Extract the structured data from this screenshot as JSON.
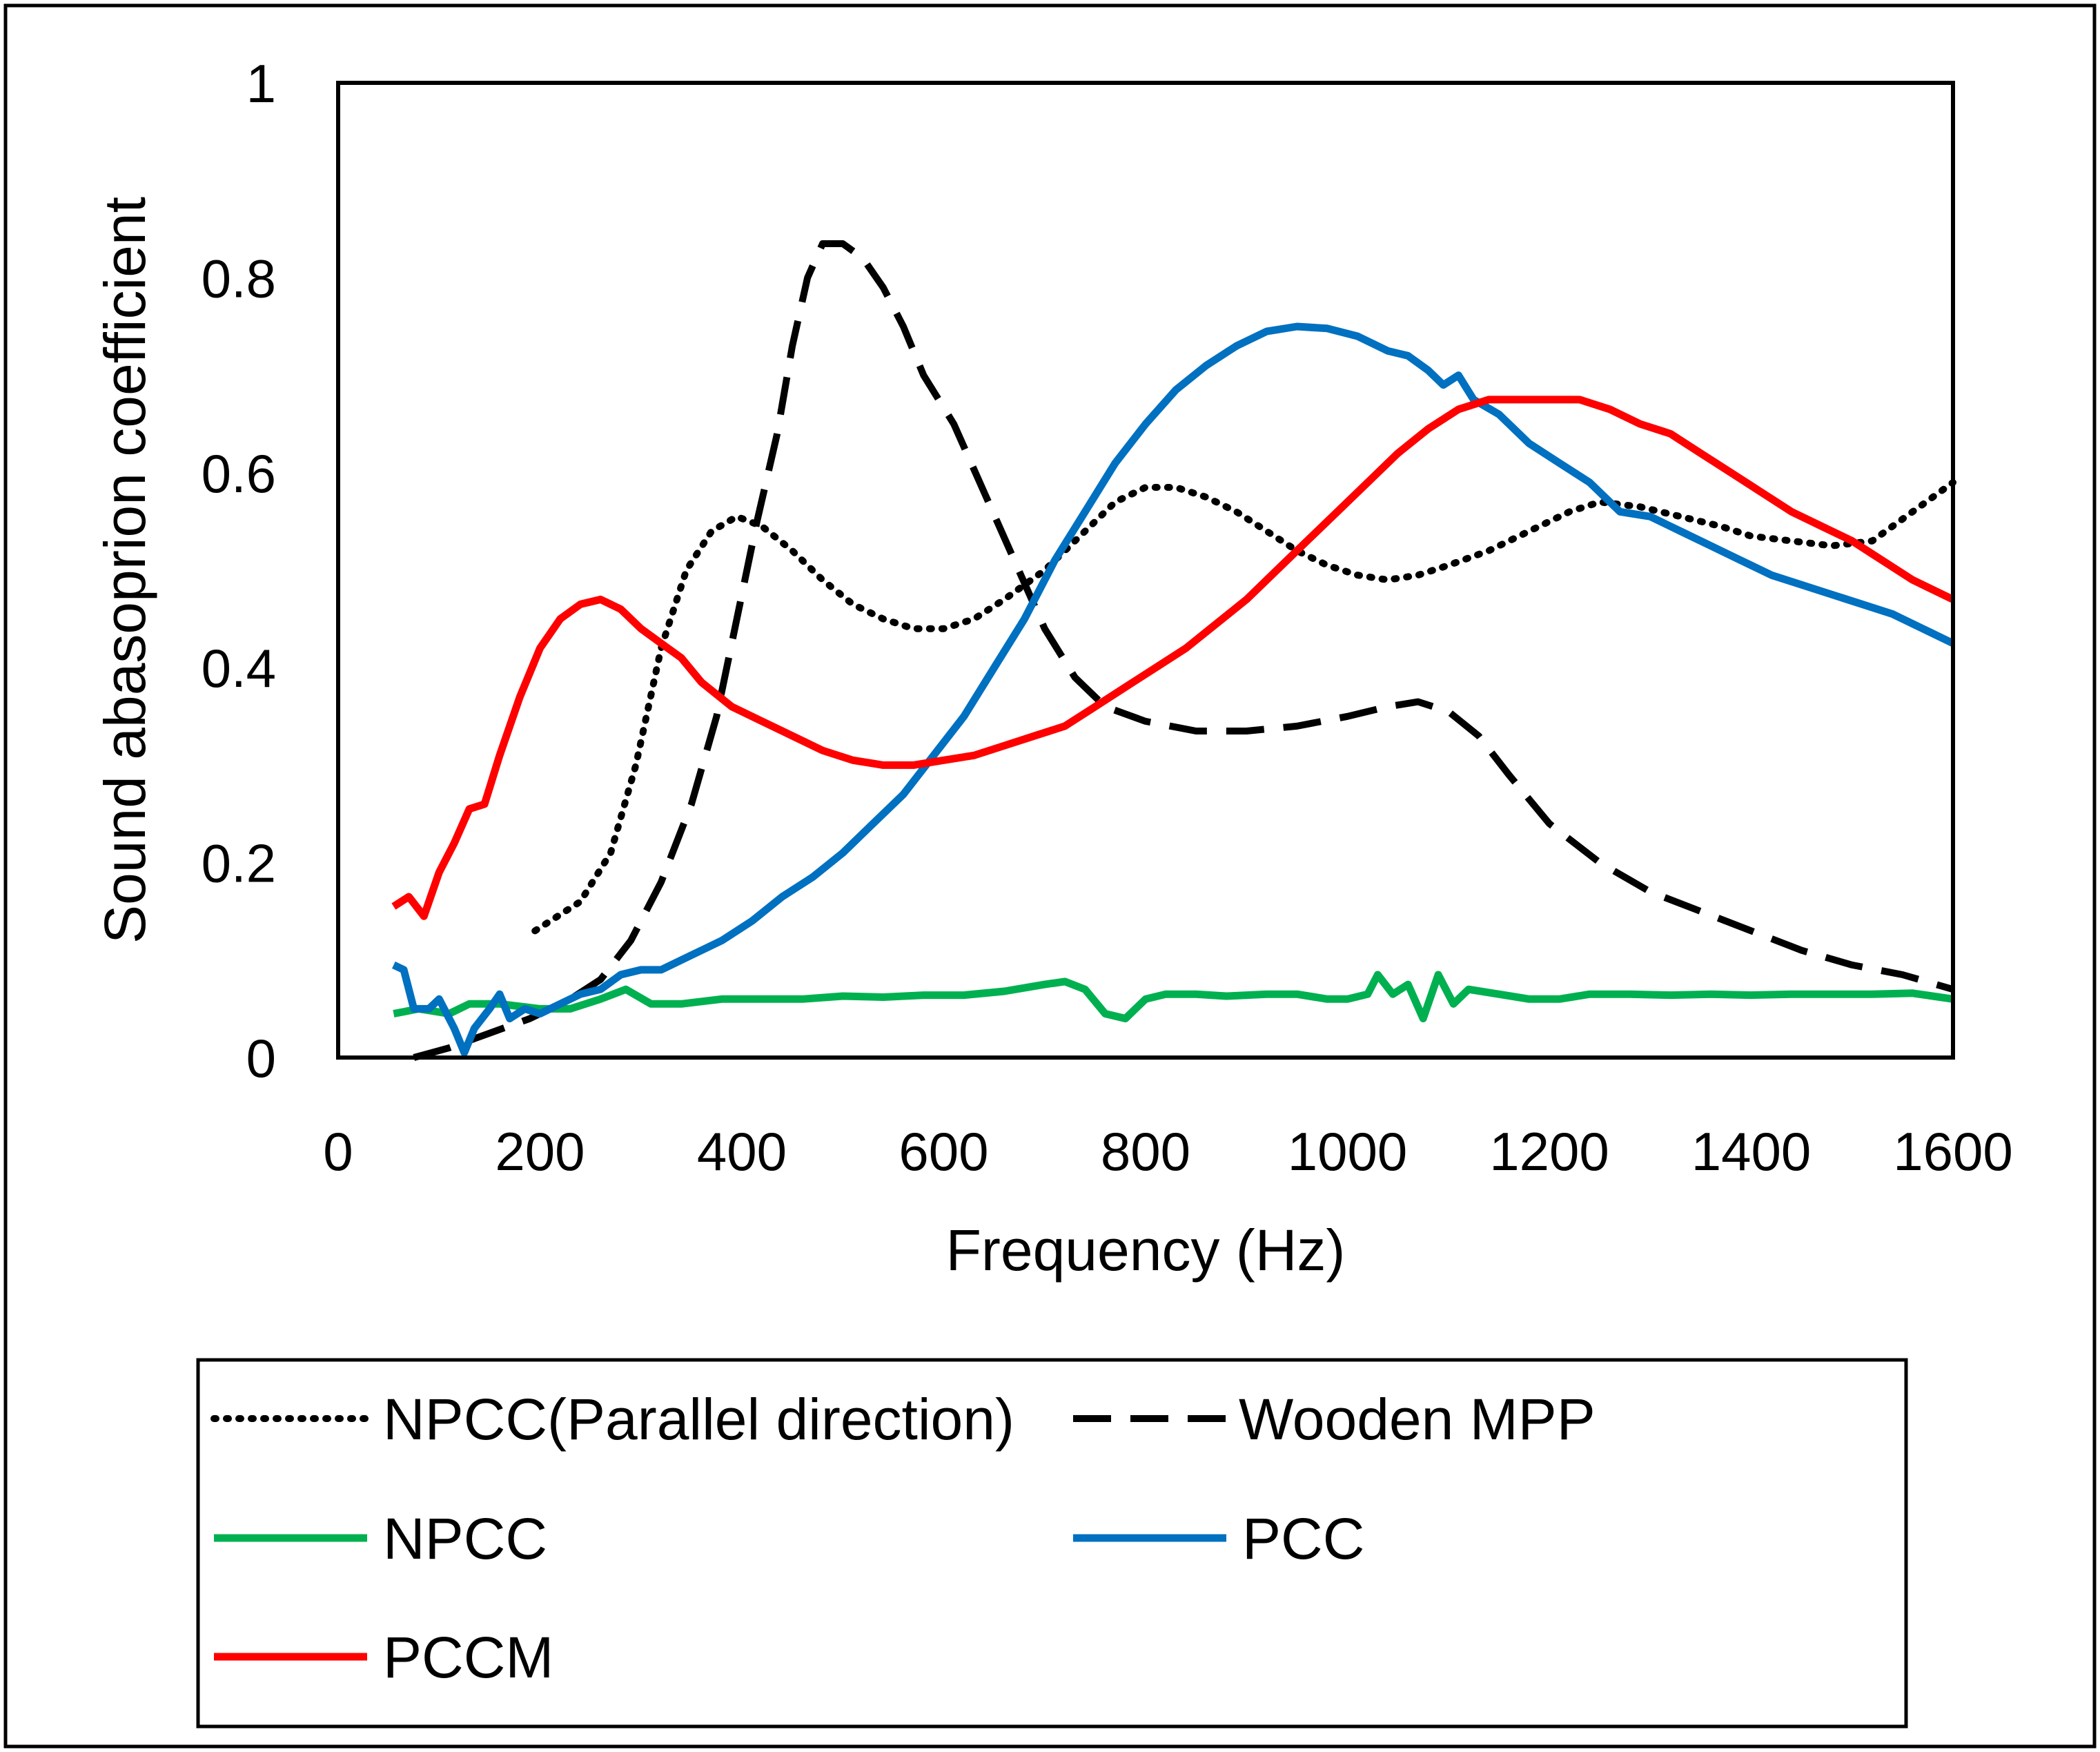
{
  "chart_data": {
    "type": "line",
    "title": "",
    "xlabel": "Frequency (Hz)",
    "ylabel": "Sound abasoprion coefficient",
    "xlim": [
      0,
      1600
    ],
    "ylim": [
      0,
      1
    ],
    "xticks": [
      0,
      200,
      400,
      600,
      800,
      1000,
      1200,
      1400,
      1600
    ],
    "yticks": [
      0,
      0.2,
      0.4,
      0.6,
      0.8,
      1
    ],
    "ytick_labels": [
      "0",
      "0.2",
      "0.4",
      "0.6",
      "0.8",
      "1"
    ],
    "grid": false,
    "legend_position": "bottom",
    "series": [
      {
        "name": "NPCC(Parallel direction)",
        "color": "#000000",
        "style": "dotted",
        "points": [
          [
            195,
            0.13
          ],
          [
            240,
            0.16
          ],
          [
            270,
            0.21
          ],
          [
            295,
            0.3
          ],
          [
            320,
            0.42
          ],
          [
            345,
            0.5
          ],
          [
            370,
            0.54
          ],
          [
            395,
            0.555
          ],
          [
            420,
            0.545
          ],
          [
            450,
            0.52
          ],
          [
            480,
            0.49
          ],
          [
            510,
            0.465
          ],
          [
            540,
            0.45
          ],
          [
            570,
            0.44
          ],
          [
            600,
            0.44
          ],
          [
            630,
            0.45
          ],
          [
            660,
            0.47
          ],
          [
            700,
            0.5
          ],
          [
            740,
            0.54
          ],
          [
            770,
            0.57
          ],
          [
            800,
            0.585
          ],
          [
            830,
            0.585
          ],
          [
            860,
            0.575
          ],
          [
            890,
            0.56
          ],
          [
            920,
            0.54
          ],
          [
            950,
            0.52
          ],
          [
            980,
            0.505
          ],
          [
            1010,
            0.495
          ],
          [
            1040,
            0.49
          ],
          [
            1070,
            0.495
          ],
          [
            1100,
            0.505
          ],
          [
            1140,
            0.52
          ],
          [
            1180,
            0.54
          ],
          [
            1220,
            0.56
          ],
          [
            1250,
            0.57
          ],
          [
            1290,
            0.565
          ],
          [
            1330,
            0.555
          ],
          [
            1370,
            0.545
          ],
          [
            1400,
            0.535
          ],
          [
            1440,
            0.53
          ],
          [
            1480,
            0.525
          ],
          [
            1520,
            0.53
          ],
          [
            1560,
            0.56
          ],
          [
            1600,
            0.59
          ]
        ]
      },
      {
        "name": "Wooden MPP",
        "color": "#000000",
        "style": "dashed",
        "points": [
          [
            75,
            0.0
          ],
          [
            110,
            0.01
          ],
          [
            150,
            0.025
          ],
          [
            190,
            0.04
          ],
          [
            230,
            0.06
          ],
          [
            260,
            0.08
          ],
          [
            290,
            0.12
          ],
          [
            320,
            0.18
          ],
          [
            350,
            0.26
          ],
          [
            375,
            0.35
          ],
          [
            395,
            0.45
          ],
          [
            415,
            0.55
          ],
          [
            435,
            0.64
          ],
          [
            450,
            0.73
          ],
          [
            465,
            0.8
          ],
          [
            480,
            0.835
          ],
          [
            500,
            0.835
          ],
          [
            520,
            0.82
          ],
          [
            540,
            0.79
          ],
          [
            560,
            0.75
          ],
          [
            580,
            0.7
          ],
          [
            610,
            0.65
          ],
          [
            640,
            0.58
          ],
          [
            670,
            0.51
          ],
          [
            700,
            0.44
          ],
          [
            730,
            0.39
          ],
          [
            760,
            0.36
          ],
          [
            800,
            0.345
          ],
          [
            850,
            0.335
          ],
          [
            900,
            0.335
          ],
          [
            950,
            0.34
          ],
          [
            1000,
            0.35
          ],
          [
            1040,
            0.36
          ],
          [
            1070,
            0.365
          ],
          [
            1100,
            0.355
          ],
          [
            1130,
            0.33
          ],
          [
            1160,
            0.29
          ],
          [
            1200,
            0.24
          ],
          [
            1250,
            0.2
          ],
          [
            1300,
            0.17
          ],
          [
            1350,
            0.15
          ],
          [
            1400,
            0.13
          ],
          [
            1450,
            0.11
          ],
          [
            1500,
            0.095
          ],
          [
            1550,
            0.085
          ],
          [
            1600,
            0.07
          ]
        ]
      },
      {
        "name": "NPCC",
        "color": "#00b050",
        "style": "solid",
        "points": [
          [
            55,
            0.045
          ],
          [
            80,
            0.05
          ],
          [
            110,
            0.045
          ],
          [
            130,
            0.055
          ],
          [
            160,
            0.055
          ],
          [
            200,
            0.05
          ],
          [
            230,
            0.05
          ],
          [
            260,
            0.06
          ],
          [
            285,
            0.07
          ],
          [
            310,
            0.055
          ],
          [
            340,
            0.055
          ],
          [
            380,
            0.06
          ],
          [
            420,
            0.06
          ],
          [
            460,
            0.06
          ],
          [
            500,
            0.063
          ],
          [
            540,
            0.062
          ],
          [
            580,
            0.064
          ],
          [
            620,
            0.064
          ],
          [
            660,
            0.068
          ],
          [
            700,
            0.075
          ],
          [
            720,
            0.078
          ],
          [
            740,
            0.07
          ],
          [
            760,
            0.045
          ],
          [
            780,
            0.04
          ],
          [
            800,
            0.06
          ],
          [
            820,
            0.065
          ],
          [
            850,
            0.065
          ],
          [
            880,
            0.063
          ],
          [
            920,
            0.065
          ],
          [
            950,
            0.065
          ],
          [
            980,
            0.06
          ],
          [
            1000,
            0.06
          ],
          [
            1020,
            0.065
          ],
          [
            1030,
            0.085
          ],
          [
            1045,
            0.065
          ],
          [
            1060,
            0.075
          ],
          [
            1075,
            0.04
          ],
          [
            1090,
            0.085
          ],
          [
            1105,
            0.055
          ],
          [
            1120,
            0.07
          ],
          [
            1150,
            0.065
          ],
          [
            1180,
            0.06
          ],
          [
            1210,
            0.06
          ],
          [
            1240,
            0.065
          ],
          [
            1280,
            0.065
          ],
          [
            1320,
            0.064
          ],
          [
            1360,
            0.065
          ],
          [
            1400,
            0.064
          ],
          [
            1440,
            0.065
          ],
          [
            1480,
            0.065
          ],
          [
            1520,
            0.065
          ],
          [
            1560,
            0.066
          ],
          [
            1600,
            0.06
          ]
        ]
      },
      {
        "name": "PCC",
        "color": "#0070c0",
        "style": "solid",
        "points": [
          [
            55,
            0.095
          ],
          [
            65,
            0.09
          ],
          [
            75,
            0.05
          ],
          [
            90,
            0.05
          ],
          [
            100,
            0.06
          ],
          [
            115,
            0.03
          ],
          [
            125,
            0.005
          ],
          [
            135,
            0.03
          ],
          [
            150,
            0.05
          ],
          [
            160,
            0.065
          ],
          [
            170,
            0.04
          ],
          [
            185,
            0.05
          ],
          [
            200,
            0.045
          ],
          [
            220,
            0.055
          ],
          [
            240,
            0.065
          ],
          [
            260,
            0.07
          ],
          [
            280,
            0.085
          ],
          [
            300,
            0.09
          ],
          [
            320,
            0.09
          ],
          [
            350,
            0.105
          ],
          [
            380,
            0.12
          ],
          [
            410,
            0.14
          ],
          [
            440,
            0.165
          ],
          [
            470,
            0.185
          ],
          [
            500,
            0.21
          ],
          [
            530,
            0.24
          ],
          [
            560,
            0.27
          ],
          [
            590,
            0.31
          ],
          [
            620,
            0.35
          ],
          [
            650,
            0.4
          ],
          [
            680,
            0.45
          ],
          [
            710,
            0.51
          ],
          [
            740,
            0.56
          ],
          [
            770,
            0.61
          ],
          [
            800,
            0.65
          ],
          [
            830,
            0.685
          ],
          [
            860,
            0.71
          ],
          [
            890,
            0.73
          ],
          [
            920,
            0.745
          ],
          [
            950,
            0.75
          ],
          [
            980,
            0.748
          ],
          [
            1010,
            0.74
          ],
          [
            1040,
            0.725
          ],
          [
            1060,
            0.72
          ],
          [
            1080,
            0.705
          ],
          [
            1095,
            0.69
          ],
          [
            1110,
            0.7
          ],
          [
            1125,
            0.675
          ],
          [
            1150,
            0.66
          ],
          [
            1180,
            0.63
          ],
          [
            1210,
            0.61
          ],
          [
            1240,
            0.59
          ],
          [
            1270,
            0.56
          ],
          [
            1300,
            0.555
          ],
          [
            1330,
            0.54
          ],
          [
            1360,
            0.525
          ],
          [
            1390,
            0.51
          ],
          [
            1420,
            0.495
          ],
          [
            1450,
            0.485
          ],
          [
            1480,
            0.475
          ],
          [
            1510,
            0.465
          ],
          [
            1540,
            0.455
          ],
          [
            1570,
            0.44
          ],
          [
            1600,
            0.425
          ]
        ]
      },
      {
        "name": "PCCM",
        "color": "#ff0000",
        "style": "solid",
        "points": [
          [
            55,
            0.155
          ],
          [
            70,
            0.165
          ],
          [
            85,
            0.145
          ],
          [
            100,
            0.19
          ],
          [
            115,
            0.22
          ],
          [
            130,
            0.255
          ],
          [
            145,
            0.26
          ],
          [
            160,
            0.31
          ],
          [
            180,
            0.37
          ],
          [
            200,
            0.42
          ],
          [
            220,
            0.45
          ],
          [
            240,
            0.465
          ],
          [
            260,
            0.47
          ],
          [
            280,
            0.46
          ],
          [
            300,
            0.44
          ],
          [
            320,
            0.425
          ],
          [
            340,
            0.41
          ],
          [
            360,
            0.385
          ],
          [
            390,
            0.36
          ],
          [
            420,
            0.345
          ],
          [
            450,
            0.33
          ],
          [
            480,
            0.315
          ],
          [
            510,
            0.305
          ],
          [
            540,
            0.3
          ],
          [
            570,
            0.3
          ],
          [
            600,
            0.305
          ],
          [
            630,
            0.31
          ],
          [
            660,
            0.32
          ],
          [
            690,
            0.33
          ],
          [
            720,
            0.34
          ],
          [
            750,
            0.36
          ],
          [
            780,
            0.38
          ],
          [
            810,
            0.4
          ],
          [
            840,
            0.42
          ],
          [
            870,
            0.445
          ],
          [
            900,
            0.47
          ],
          [
            930,
            0.5
          ],
          [
            960,
            0.53
          ],
          [
            990,
            0.56
          ],
          [
            1020,
            0.59
          ],
          [
            1050,
            0.62
          ],
          [
            1080,
            0.645
          ],
          [
            1110,
            0.665
          ],
          [
            1140,
            0.675
          ],
          [
            1170,
            0.675
          ],
          [
            1200,
            0.675
          ],
          [
            1230,
            0.675
          ],
          [
            1260,
            0.665
          ],
          [
            1290,
            0.65
          ],
          [
            1320,
            0.64
          ],
          [
            1350,
            0.62
          ],
          [
            1380,
            0.6
          ],
          [
            1410,
            0.58
          ],
          [
            1440,
            0.56
          ],
          [
            1470,
            0.545
          ],
          [
            1500,
            0.53
          ],
          [
            1530,
            0.51
          ],
          [
            1560,
            0.49
          ],
          [
            1600,
            0.47
          ]
        ]
      }
    ]
  }
}
